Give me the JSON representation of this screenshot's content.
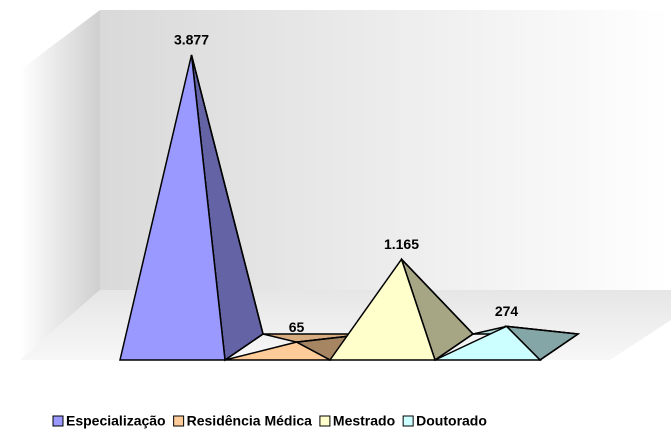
{
  "chart_data": {
    "type": "pyramid",
    "series": [
      {
        "name": "Especialização",
        "color": "#9999ff",
        "values": [
          3877
        ],
        "value_labels": [
          "3.877"
        ]
      },
      {
        "name": "Residência Médica",
        "color": "#ffcc99",
        "values": [
          65
        ],
        "value_labels": [
          "65"
        ]
      },
      {
        "name": "Mestrado",
        "color": "#ffffcc",
        "values": [
          1165
        ],
        "value_labels": [
          "1.165"
        ]
      },
      {
        "name": "Doutorado",
        "color": "#ccffff",
        "values": [
          274
        ],
        "value_labels": [
          "274"
        ]
      }
    ],
    "legend": "bottom"
  }
}
